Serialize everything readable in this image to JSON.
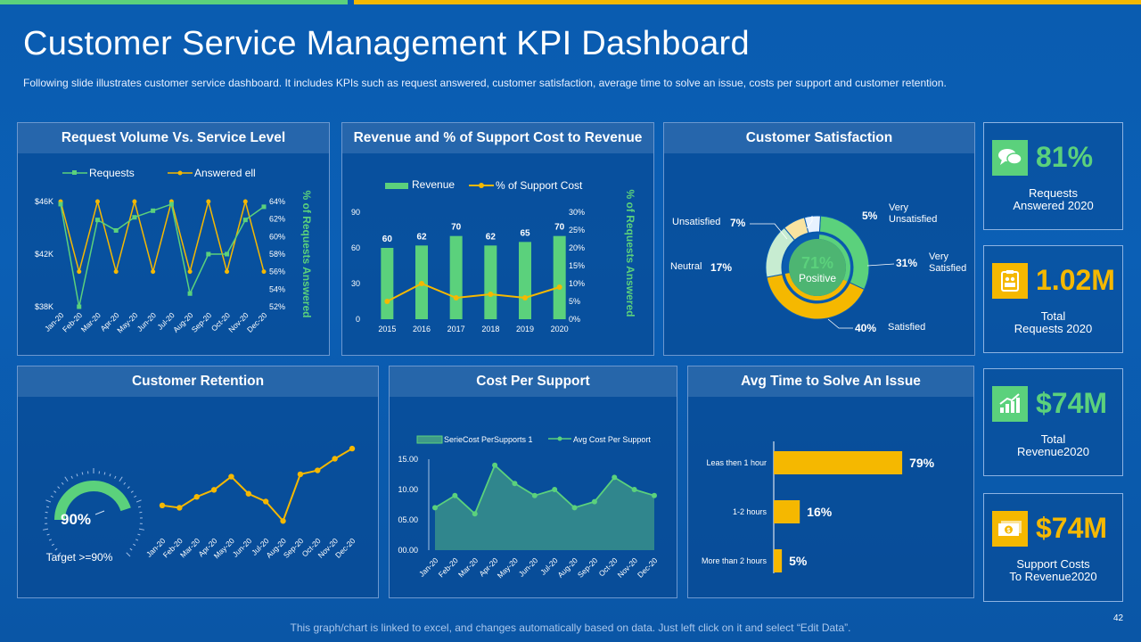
{
  "title": "Customer Service Management KPI Dashboard",
  "subtitle": "Following slide illustrates customer service dashboard. It includes KPIs such as request answered, customer satisfaction, average time to solve an issue, costs per support and customer retention.",
  "footer": "This graph/chart is linked to excel, and changes automatically based on data. Just left click on it and select “Edit Data”.",
  "page_number": "42",
  "colors": {
    "green": "#5bd17c",
    "yellow": "#f5b800",
    "bg": "#0a5cb0"
  },
  "panels": {
    "request_volume": "Request Volume Vs. Service Level",
    "revenue": "Revenue and % of Support Cost to Revenue",
    "satisfaction": "Customer Satisfaction",
    "retention": "Customer Retention",
    "cost_per_support": "Cost Per Support",
    "avg_time": "Avg Time to Solve An Issue"
  },
  "kpis": [
    {
      "icon": "chat-bubbles-icon",
      "value": "81%",
      "label_line1": "Requests",
      "label_line2": "Answered 2020",
      "icon_bg": "#5bd17c",
      "value_color": "#5bd17c"
    },
    {
      "icon": "clipboard-team-icon",
      "value": "1.02M",
      "label_line1": "Total",
      "label_line2": "Requests 2020",
      "icon_bg": "#f5b800",
      "value_color": "#f5b800"
    },
    {
      "icon": "growth-chart-icon",
      "value": "$74M",
      "label_line1": "Total",
      "label_line2": "Revenue2020",
      "icon_bg": "#5bd17c",
      "value_color": "#5bd17c"
    },
    {
      "icon": "money-bill-icon",
      "value": "$74M",
      "label_line1": "Support Costs",
      "label_line2": "To Revenue2020",
      "icon_bg": "#f5b800",
      "value_color": "#f5b800"
    }
  ],
  "chart_data": [
    {
      "id": "request_volume",
      "type": "line",
      "title": "Request Volume Vs. Service Level",
      "categories": [
        "Jan-20",
        "Feb-20",
        "Mar-20",
        "Apr-20",
        "May-20",
        "Jun-20",
        "Jul-20",
        "Aug-20",
        "Sep-20",
        "Oct-20",
        "Nov-20",
        "Dec-20"
      ],
      "legend": [
        "Requests",
        "Answered ell"
      ],
      "y_left_ticks": [
        "$46K",
        "$42K",
        "$38K"
      ],
      "y_left_range": [
        38000,
        46000
      ],
      "y_right_ticks": [
        "64%",
        "62%",
        "60%",
        "58%",
        "56%",
        "54%",
        "52%"
      ],
      "y_right_range": [
        52,
        64
      ],
      "y_right_label": "% of Requests Answered",
      "series": [
        {
          "name": "Requests",
          "axis": "left",
          "values": [
            45800,
            38000,
            44600,
            43800,
            44800,
            45300,
            45800,
            39000,
            42000,
            42000,
            44600,
            45600
          ]
        },
        {
          "name": "Answered ell",
          "axis": "right",
          "values": [
            64,
            56,
            64,
            56,
            64,
            56,
            64,
            56,
            64,
            56,
            64,
            56
          ]
        }
      ]
    },
    {
      "id": "revenue",
      "type": "bar",
      "title": "Revenue and % of Support Cost to Revenue",
      "categories": [
        "2015",
        "2016",
        "2017",
        "2018",
        "2019",
        "2020"
      ],
      "legend": [
        "Revenue",
        "% of Support Cost"
      ],
      "y_left_ticks": [
        "90",
        "60",
        "30",
        "0"
      ],
      "y_left_range": [
        0,
        90
      ],
      "y_right_ticks": [
        "30%",
        "25%",
        "20%",
        "15%",
        "10%",
        "5%",
        "0%"
      ],
      "y_right_range": [
        0,
        30
      ],
      "y_right_label": "% of Requests Answered",
      "series": [
        {
          "name": "Revenue",
          "axis": "left",
          "values": [
            60,
            62,
            70,
            62,
            65,
            70
          ],
          "labels": [
            "60",
            "62",
            "70",
            "62",
            "65",
            "70"
          ]
        },
        {
          "name": "% of Support Cost",
          "axis": "right",
          "values": [
            5,
            10,
            6,
            7,
            6,
            9
          ]
        }
      ]
    },
    {
      "id": "satisfaction",
      "type": "pie",
      "title": "Customer Satisfaction",
      "center_value": "71%",
      "center_label": "Positive",
      "slices": [
        {
          "name": "Very Satisfied",
          "value": 31,
          "label": "31%",
          "name_line1": "Very",
          "name_line2": "Satisfied"
        },
        {
          "name": "Satisfied",
          "value": 40,
          "label": "40%",
          "name_line1": "Satisfied",
          "name_line2": ""
        },
        {
          "name": "Neutral",
          "value": 17,
          "label": "17%",
          "name_line1": "Neutral",
          "name_line2": ""
        },
        {
          "name": "Unsatisfied",
          "value": 7,
          "label": "7%",
          "name_line1": "Unsatisfied",
          "name_line2": ""
        },
        {
          "name": "Very Unsatisfied",
          "value": 5,
          "label": "5%",
          "name_line1": "Very",
          "name_line2": "Unsatisfied"
        }
      ]
    },
    {
      "id": "retention",
      "type": "line",
      "title": "Customer Retention",
      "gauge_value": 90,
      "gauge_label": "90%",
      "target_label": "Target >=90%",
      "categories": [
        "Jan-20",
        "Feb-20",
        "Mar-20",
        "Apr-20",
        "May-20",
        "Jun-20",
        "Jul-20",
        "Aug-20",
        "Sep-20",
        "Oct-20",
        "Nov-20",
        "Dec-20"
      ],
      "series": [
        {
          "name": "Retention",
          "values": [
            3.0,
            2.7,
            4.1,
            5.0,
            6.7,
            4.5,
            3.5,
            1.0,
            7.0,
            7.5,
            9.0,
            10.3
          ]
        }
      ],
      "ylim": [
        0,
        11
      ]
    },
    {
      "id": "cost_per_support",
      "type": "area",
      "title": "Cost Per Support",
      "legend": [
        "SerieCost PerSupports 1",
        "Avg Cost Per Support"
      ],
      "categories": [
        "Jan-20",
        "Feb-20",
        "Mar-20",
        "Apr-20",
        "May-20",
        "Jun-20",
        "Jul-20",
        "Aug-20",
        "Sep-20",
        "Oct-20",
        "Nov-20",
        "Dec-20"
      ],
      "y_ticks": [
        "15.00",
        "10.00",
        "05.00",
        "00.00"
      ],
      "ylim": [
        0,
        15
      ],
      "series": [
        {
          "name": "SerieCost PerSupports 1",
          "values": [
            7,
            9,
            6,
            14,
            11,
            9,
            10,
            7,
            8,
            12,
            10,
            9
          ]
        },
        {
          "name": "Avg Cost Per Support",
          "values": [
            7,
            9,
            6,
            14,
            11,
            9,
            10,
            7,
            8,
            12,
            10,
            9
          ]
        }
      ]
    },
    {
      "id": "avg_time",
      "type": "bar",
      "orientation": "horizontal",
      "title": "Avg Time to Solve An Issue",
      "categories": [
        "Leas then 1 hour",
        "1-2 hours",
        "More than 2 hours"
      ],
      "values": [
        79,
        16,
        5
      ],
      "labels": [
        "79%",
        "16%",
        "5%"
      ],
      "xlim": [
        0,
        100
      ]
    }
  ]
}
